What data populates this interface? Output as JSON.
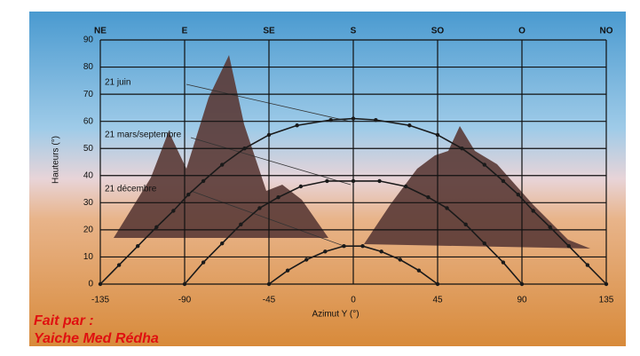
{
  "chart_data": {
    "type": "line",
    "x_label": "Azimut Y   (°)",
    "y_label": "Hauteurs (°)",
    "xlim": [
      -135,
      135
    ],
    "ylim": [
      0,
      90
    ],
    "xticks": [
      -135,
      -90,
      -45,
      0,
      45,
      90,
      135
    ],
    "yticks": [
      0,
      10,
      20,
      30,
      40,
      50,
      60,
      70,
      80,
      90
    ],
    "top_ticks": [
      {
        "value": -135,
        "label": "NE"
      },
      {
        "value": -90,
        "label": "E"
      },
      {
        "value": -45,
        "label": "SE"
      },
      {
        "value": 0,
        "label": "S"
      },
      {
        "value": 45,
        "label": "SO"
      },
      {
        "value": 90,
        "label": "O"
      },
      {
        "value": 135,
        "label": "NO"
      }
    ],
    "grid": true,
    "series": [
      {
        "name": "21 juin",
        "color": "#1a1a1a",
        "x": [
          -135,
          -125,
          -115,
          -105,
          -96,
          -88,
          -80,
          -70,
          -58,
          -45,
          -30,
          -12,
          0,
          12,
          30,
          45,
          58,
          70,
          80,
          88,
          96,
          105,
          115,
          125,
          135
        ],
        "values": [
          0,
          7,
          14,
          21,
          27,
          33,
          38,
          44,
          50,
          55,
          58.5,
          60.5,
          61,
          60.5,
          58.5,
          55,
          50,
          44,
          38,
          33,
          27,
          21,
          14,
          7,
          0
        ]
      },
      {
        "name": "21 mars/septembre",
        "color": "#1a1a1a",
        "x": [
          -90,
          -80,
          -70,
          -60,
          -50,
          -40,
          -28,
          -14,
          0,
          14,
          28,
          40,
          50,
          60,
          70,
          80,
          90
        ],
        "values": [
          0,
          8,
          15,
          22,
          28,
          32,
          36,
          38,
          38,
          38,
          36,
          32,
          28,
          22,
          15,
          8,
          0
        ]
      },
      {
        "name": "21 décembre",
        "color": "#1a1a1a",
        "x": [
          -45,
          -35,
          -25,
          -15,
          -5,
          5,
          15,
          25,
          35,
          45
        ],
        "values": [
          0,
          5,
          9,
          12,
          14,
          14,
          12,
          9,
          5,
          0
        ]
      }
    ],
    "credits": [
      "Fait par :",
      "Yaiche Med Rédha"
    ]
  }
}
